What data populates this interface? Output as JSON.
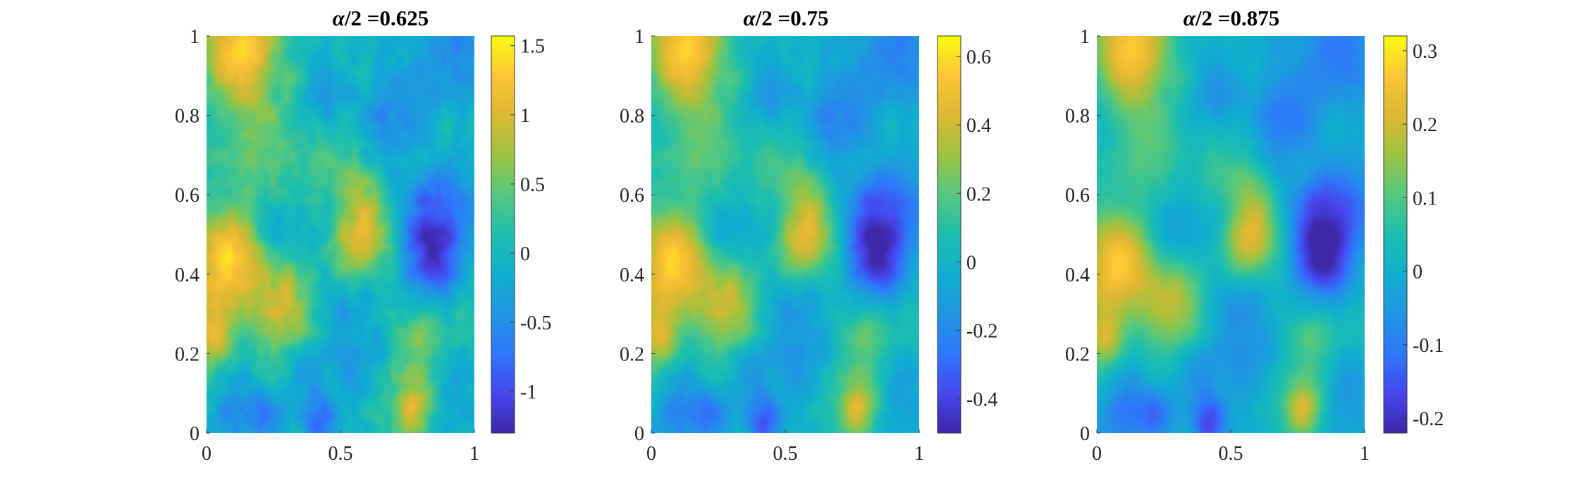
{
  "chart_data": [
    {
      "type": "heatmap",
      "title_symbol": "α",
      "title_rest": "/2 =0.625",
      "xlabel": "",
      "ylabel": "",
      "xlim": [
        0,
        1
      ],
      "ylim": [
        0,
        1
      ],
      "x_ticks": [
        "0",
        "0.5",
        "1"
      ],
      "y_ticks": [
        "0",
        "0.2",
        "0.4",
        "0.6",
        "0.8",
        "1"
      ],
      "colorbar": {
        "min": -1.3,
        "max": 1.57,
        "ticks": [
          -1,
          -0.5,
          0,
          0.5,
          1,
          1.5
        ],
        "tick_labels": [
          "-1",
          "-0.5",
          "0",
          "0.5",
          "1",
          "1.5"
        ]
      },
      "field_scale": 1.0,
      "roughness": 1.0,
      "colormap": "parula"
    },
    {
      "type": "heatmap",
      "title_symbol": "α",
      "title_rest": "/2 =0.75",
      "xlabel": "",
      "ylabel": "",
      "xlim": [
        0,
        1
      ],
      "ylim": [
        0,
        1
      ],
      "x_ticks": [
        "0",
        "0.5",
        "1"
      ],
      "y_ticks": [
        "0",
        "0.2",
        "0.4",
        "0.6",
        "0.8",
        "1"
      ],
      "colorbar": {
        "min": -0.5,
        "max": 0.66,
        "ticks": [
          -0.4,
          -0.2,
          0,
          0.2,
          0.4,
          0.6
        ],
        "tick_labels": [
          "-0.4",
          "-0.2",
          "0",
          "0.2",
          "0.4",
          "0.6"
        ]
      },
      "field_scale": 0.42,
      "roughness": 0.6,
      "colormap": "parula"
    },
    {
      "type": "heatmap",
      "title_symbol": "α",
      "title_rest": "/2 =0.875",
      "xlabel": "",
      "ylabel": "",
      "xlim": [
        0,
        1
      ],
      "ylim": [
        0,
        1
      ],
      "x_ticks": [
        "0",
        "0.5",
        "1"
      ],
      "y_ticks": [
        "0",
        "0.2",
        "0.4",
        "0.6",
        "0.8",
        "1"
      ],
      "colorbar": {
        "min": -0.22,
        "max": 0.32,
        "ticks": [
          -0.2,
          -0.1,
          0,
          0.1,
          0.2,
          0.3
        ],
        "tick_labels": [
          "-0.2",
          "-0.1",
          "0",
          "0.1",
          "0.2",
          "0.3"
        ]
      },
      "field_scale": 0.2,
      "roughness": 0.3,
      "colormap": "parula"
    }
  ]
}
